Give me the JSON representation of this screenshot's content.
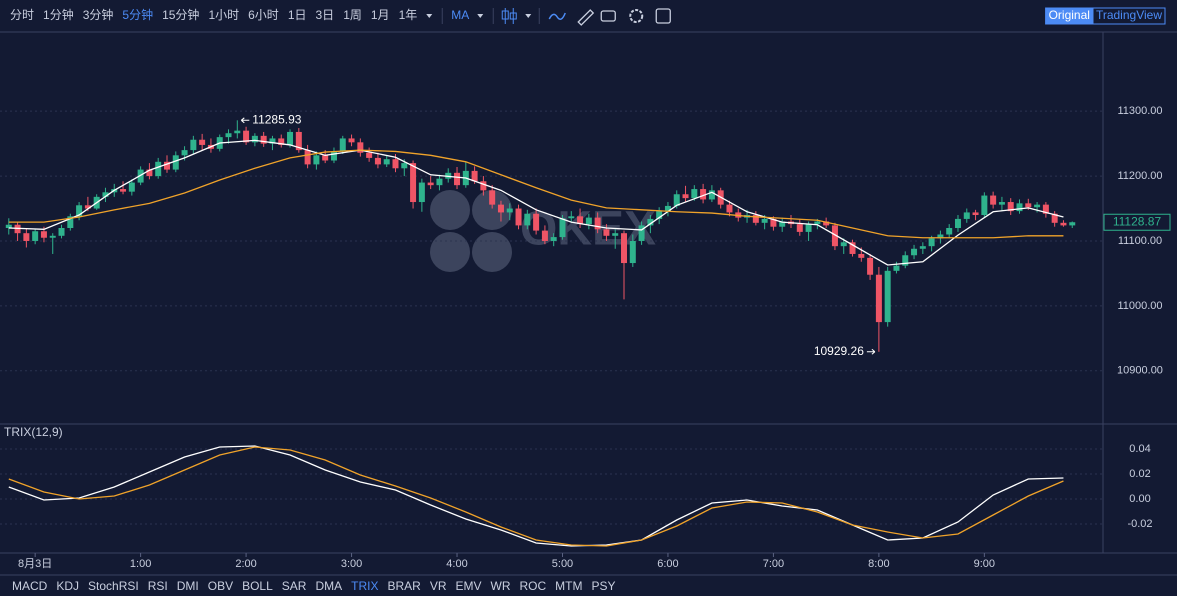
{
  "toolbar": {
    "intervals": [
      "分时",
      "1分钟",
      "3分钟",
      "5分钟",
      "15分钟",
      "1小时",
      "6小时",
      "1日",
      "3日",
      "1周",
      "1月",
      "1年"
    ],
    "active_interval": 3,
    "indicator": "MA",
    "views": [
      "Original",
      "TradingView"
    ],
    "active_view": 0
  },
  "watermark": "OKEX",
  "chart_data": {
    "type": "candlestick",
    "up_color": "#2fb38d",
    "down_color": "#ef5566",
    "xlim": [
      -1,
      124.5
    ],
    "ylim": [
      10818,
      11422
    ],
    "yticks": [
      {
        "value": 11300,
        "label": "11300.00"
      },
      {
        "value": 11200,
        "label": "11200.00"
      },
      {
        "value": 11100,
        "label": "11100.00"
      },
      {
        "value": 11000,
        "label": "11000.00"
      },
      {
        "value": 10900,
        "label": "10900.00"
      }
    ],
    "xticks": [
      {
        "value": 3,
        "label": "8月3日"
      },
      {
        "value": 15,
        "label": "1:00"
      },
      {
        "value": 27,
        "label": "2:00"
      },
      {
        "value": 39,
        "label": "3:00"
      },
      {
        "value": 51,
        "label": "4:00"
      },
      {
        "value": 63,
        "label": "5:00"
      },
      {
        "value": 75,
        "label": "6:00"
      },
      {
        "value": 87,
        "label": "7:00"
      },
      {
        "value": 99,
        "label": "8:00"
      },
      {
        "value": 111,
        "label": "9:00"
      }
    ],
    "grid": true,
    "max_index": 26,
    "min_index": 99,
    "ohlc": [
      [
        11120,
        11135,
        11110,
        11125
      ],
      [
        11125,
        11130,
        11100,
        11112
      ],
      [
        11112,
        11120,
        11090,
        11100
      ],
      [
        11100,
        11118,
        11095,
        11115
      ],
      [
        11115,
        11122,
        11098,
        11105
      ],
      [
        11105,
        11112,
        11080,
        11108
      ],
      [
        11108,
        11125,
        11104,
        11120
      ],
      [
        11120,
        11142,
        11116,
        11138
      ],
      [
        11138,
        11160,
        11132,
        11155
      ],
      [
        11155,
        11168,
        11146,
        11150
      ],
      [
        11150,
        11172,
        11148,
        11168
      ],
      [
        11168,
        11182,
        11160,
        11175
      ],
      [
        11175,
        11188,
        11168,
        11180
      ],
      [
        11180,
        11192,
        11172,
        11176
      ],
      [
        11176,
        11195,
        11170,
        11190
      ],
      [
        11190,
        11215,
        11186,
        11210
      ],
      [
        11210,
        11220,
        11195,
        11200
      ],
      [
        11200,
        11228,
        11196,
        11222
      ],
      [
        11222,
        11232,
        11205,
        11210
      ],
      [
        11210,
        11238,
        11206,
        11232
      ],
      [
        11232,
        11246,
        11224,
        11240
      ],
      [
        11240,
        11262,
        11234,
        11256
      ],
      [
        11256,
        11265,
        11240,
        11248
      ],
      [
        11248,
        11258,
        11236,
        11242
      ],
      [
        11242,
        11264,
        11238,
        11260
      ],
      [
        11260,
        11272,
        11250,
        11266
      ],
      [
        11266,
        11285.93,
        11258,
        11270
      ],
      [
        11270,
        11276,
        11248,
        11252
      ],
      [
        11252,
        11266,
        11246,
        11262
      ],
      [
        11262,
        11268,
        11245,
        11250
      ],
      [
        11250,
        11262,
        11240,
        11258
      ],
      [
        11258,
        11264,
        11244,
        11248
      ],
      [
        11248,
        11272,
        11244,
        11268
      ],
      [
        11268,
        11274,
        11236,
        11240
      ],
      [
        11240,
        11248,
        11212,
        11218
      ],
      [
        11218,
        11238,
        11210,
        11232
      ],
      [
        11232,
        11240,
        11220,
        11224
      ],
      [
        11224,
        11244,
        11220,
        11238
      ],
      [
        11238,
        11262,
        11234,
        11258
      ],
      [
        11258,
        11264,
        11246,
        11252
      ],
      [
        11252,
        11258,
        11230,
        11236
      ],
      [
        11236,
        11244,
        11222,
        11228
      ],
      [
        11228,
        11236,
        11212,
        11218
      ],
      [
        11218,
        11232,
        11214,
        11226
      ],
      [
        11226,
        11234,
        11206,
        11212
      ],
      [
        11212,
        11226,
        11200,
        11220
      ],
      [
        11220,
        11224,
        11150,
        11160
      ],
      [
        11160,
        11196,
        11145,
        11190
      ],
      [
        11190,
        11200,
        11180,
        11186
      ],
      [
        11186,
        11202,
        11178,
        11196
      ],
      [
        11196,
        11212,
        11190,
        11205
      ],
      [
        11205,
        11214,
        11180,
        11186
      ],
      [
        11186,
        11222,
        11182,
        11208
      ],
      [
        11208,
        11215,
        11188,
        11192
      ],
      [
        11192,
        11200,
        11170,
        11178
      ],
      [
        11178,
        11186,
        11150,
        11156
      ],
      [
        11156,
        11162,
        11130,
        11144
      ],
      [
        11144,
        11158,
        11132,
        11150
      ],
      [
        11150,
        11156,
        11118,
        11124
      ],
      [
        11124,
        11148,
        11118,
        11142
      ],
      [
        11142,
        11150,
        11110,
        11116
      ],
      [
        11116,
        11124,
        11095,
        11100
      ],
      [
        11100,
        11112,
        11092,
        11106
      ],
      [
        11106,
        11140,
        11102,
        11135
      ],
      [
        11135,
        11146,
        11128,
        11138
      ],
      [
        11138,
        11150,
        11120,
        11126
      ],
      [
        11126,
        11142,
        11118,
        11136
      ],
      [
        11136,
        11144,
        11112,
        11118
      ],
      [
        11118,
        11126,
        11100,
        11108
      ],
      [
        11108,
        11118,
        11088,
        11112
      ],
      [
        11112,
        11116,
        11010,
        11066
      ],
      [
        11066,
        11110,
        11060,
        11100
      ],
      [
        11100,
        11130,
        11094,
        11124
      ],
      [
        11124,
        11140,
        11112,
        11134
      ],
      [
        11134,
        11152,
        11126,
        11146
      ],
      [
        11146,
        11160,
        11138,
        11154
      ],
      [
        11154,
        11178,
        11150,
        11172
      ],
      [
        11172,
        11185,
        11160,
        11166
      ],
      [
        11166,
        11186,
        11162,
        11180
      ],
      [
        11180,
        11188,
        11158,
        11164
      ],
      [
        11164,
        11186,
        11160,
        11178
      ],
      [
        11178,
        11182,
        11150,
        11156
      ],
      [
        11156,
        11162,
        11138,
        11144
      ],
      [
        11144,
        11150,
        11130,
        11136
      ],
      [
        11136,
        11148,
        11128,
        11140
      ],
      [
        11140,
        11146,
        11124,
        11128
      ],
      [
        11128,
        11140,
        11118,
        11134
      ],
      [
        11134,
        11138,
        11116,
        11122
      ],
      [
        11122,
        11136,
        11114,
        11130
      ],
      [
        11130,
        11140,
        11120,
        11126
      ],
      [
        11126,
        11134,
        11108,
        11114
      ],
      [
        11114,
        11130,
        11100,
        11126
      ],
      [
        11126,
        11134,
        11118,
        11130
      ],
      [
        11130,
        11136,
        11120,
        11124
      ],
      [
        11124,
        11128,
        11086,
        11092
      ],
      [
        11092,
        11104,
        11080,
        11098
      ],
      [
        11098,
        11102,
        11076,
        11080
      ],
      [
        11080,
        11090,
        11068,
        11074
      ],
      [
        11074,
        11080,
        11040,
        11048
      ],
      [
        11048,
        11060,
        10929.26,
        10975
      ],
      [
        10975,
        11060,
        10968,
        11054
      ],
      [
        11054,
        11068,
        11050,
        11062
      ],
      [
        11062,
        11084,
        11058,
        11078
      ],
      [
        11078,
        11094,
        11072,
        11088
      ],
      [
        11088,
        11098,
        11080,
        11092
      ],
      [
        11092,
        11108,
        11084,
        11104
      ],
      [
        11104,
        11116,
        11096,
        11110
      ],
      [
        11110,
        11126,
        11104,
        11120
      ],
      [
        11120,
        11140,
        11114,
        11134
      ],
      [
        11134,
        11150,
        11128,
        11144
      ],
      [
        11144,
        11148,
        11132,
        11140
      ],
      [
        11140,
        11175,
        11136,
        11170
      ],
      [
        11170,
        11176,
        11150,
        11156
      ],
      [
        11156,
        11168,
        11146,
        11160
      ],
      [
        11160,
        11166,
        11140,
        11146
      ],
      [
        11146,
        11164,
        11142,
        11158
      ],
      [
        11158,
        11165,
        11148,
        11152
      ],
      [
        11152,
        11160,
        11144,
        11156
      ],
      [
        11156,
        11160,
        11136,
        11142
      ],
      [
        11142,
        11146,
        11122,
        11128
      ],
      [
        11128,
        11132,
        11122,
        11124
      ],
      [
        11124,
        11130,
        11120,
        11128.87
      ]
    ],
    "line_x": [
      0,
      4,
      8,
      12,
      16,
      20,
      24,
      28,
      32,
      36,
      40,
      44,
      48,
      52,
      56,
      60,
      64,
      68,
      72,
      76,
      80,
      84,
      88,
      92,
      96,
      100,
      104,
      108,
      112,
      116,
      120
    ],
    "lines": [
      {
        "color": "#ffffff",
        "values": [
          11120,
          11118,
          11140,
          11178,
          11209,
          11228,
          11251,
          11255,
          11248,
          11232,
          11240,
          11229,
          11202,
          11197,
          11178,
          11148,
          11129,
          11120,
          11117,
          11155,
          11175,
          11145,
          11129,
          11125,
          11094,
          11063,
          11068,
          11109,
          11145,
          11151,
          11137
        ]
      },
      {
        "color": "#f0a32a",
        "values": [
          11129,
          11129,
          11137,
          11148,
          11158,
          11174,
          11194,
          11212,
          11228,
          11237,
          11240,
          11238,
          11232,
          11222,
          11202,
          11182,
          11163,
          11151,
          11148,
          11145,
          11143,
          11138,
          11135,
          11132,
          11120,
          11108,
          11105,
          11105,
          11105,
          11108,
          11108
        ]
      }
    ],
    "indicator": {
      "title": "TRIX(12,9)",
      "ylim": [
        -0.0432,
        0.06
      ],
      "yticks": [
        0.04,
        0.02,
        {
          "value": 0,
          "label": "0.00"
        },
        -0.02
      ],
      "lines": [
        {
          "color": "#ffffff",
          "values": [
            0.0096,
            -0.0008,
            0.0008,
            0.0096,
            0.0216,
            0.0336,
            0.0416,
            0.0424,
            0.0352,
            0.0232,
            0.0136,
            0.0072,
            -0.0048,
            -0.016,
            -0.0248,
            -0.0352,
            -0.0376,
            -0.0368,
            -0.0328,
            -0.0168,
            -0.0032,
            -0.0008,
            -0.0056,
            -0.0088,
            -0.0208,
            -0.0328,
            -0.0312,
            -0.0184,
            0.0032,
            0.016,
            0.0168
          ]
        },
        {
          "color": "#f0a32a",
          "values": [
            0.016,
            0.0056,
            0,
            0.0024,
            0.0112,
            0.0232,
            0.0352,
            0.0416,
            0.0392,
            0.0312,
            0.0192,
            0.0104,
            0.0008,
            -0.0104,
            -0.0224,
            -0.0328,
            -0.0368,
            -0.0376,
            -0.0328,
            -0.0216,
            -0.0072,
            -0.0024,
            -0.0032,
            -0.0104,
            -0.0208,
            -0.0264,
            -0.0312,
            -0.028,
            -0.0128,
            0.0024,
            0.0144
          ]
        }
      ]
    }
  },
  "tabs": {
    "items": [
      "MACD",
      "KDJ",
      "StochRSI",
      "RSI",
      "DMI",
      "OBV",
      "BOLL",
      "SAR",
      "DMA",
      "TRIX",
      "BRAR",
      "VR",
      "EMV",
      "WR",
      "ROC",
      "MTM",
      "PSY"
    ],
    "active": 9
  }
}
